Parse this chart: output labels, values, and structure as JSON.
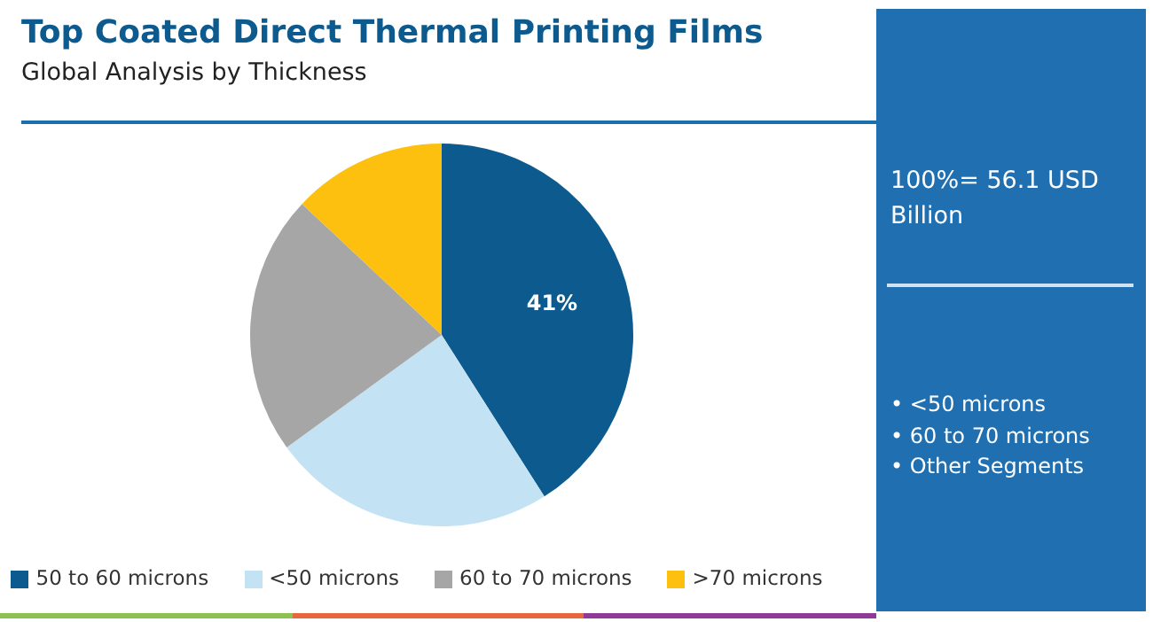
{
  "chart_data": {
    "type": "pie",
    "title": "Top Coated Direct Thermal Printing Films",
    "subtitle": "Global Analysis by Thickness",
    "categories": [
      "50 to 60 microns",
      "<50 microns",
      "60 to 70 microns",
      ">70 microns"
    ],
    "values": [
      41,
      24,
      22,
      13
    ],
    "colors": [
      "#0d5a8f",
      "#c3e2f4",
      "#a6a6a6",
      "#fdc00f"
    ],
    "value_labels": [
      "41%",
      null,
      null,
      null
    ],
    "legend": "bottom",
    "annotations": [
      "100%= 56.1 USD Billion",
      "• <50 microns",
      "• 60 to 70 microns",
      "• Other Segments"
    ]
  }
}
